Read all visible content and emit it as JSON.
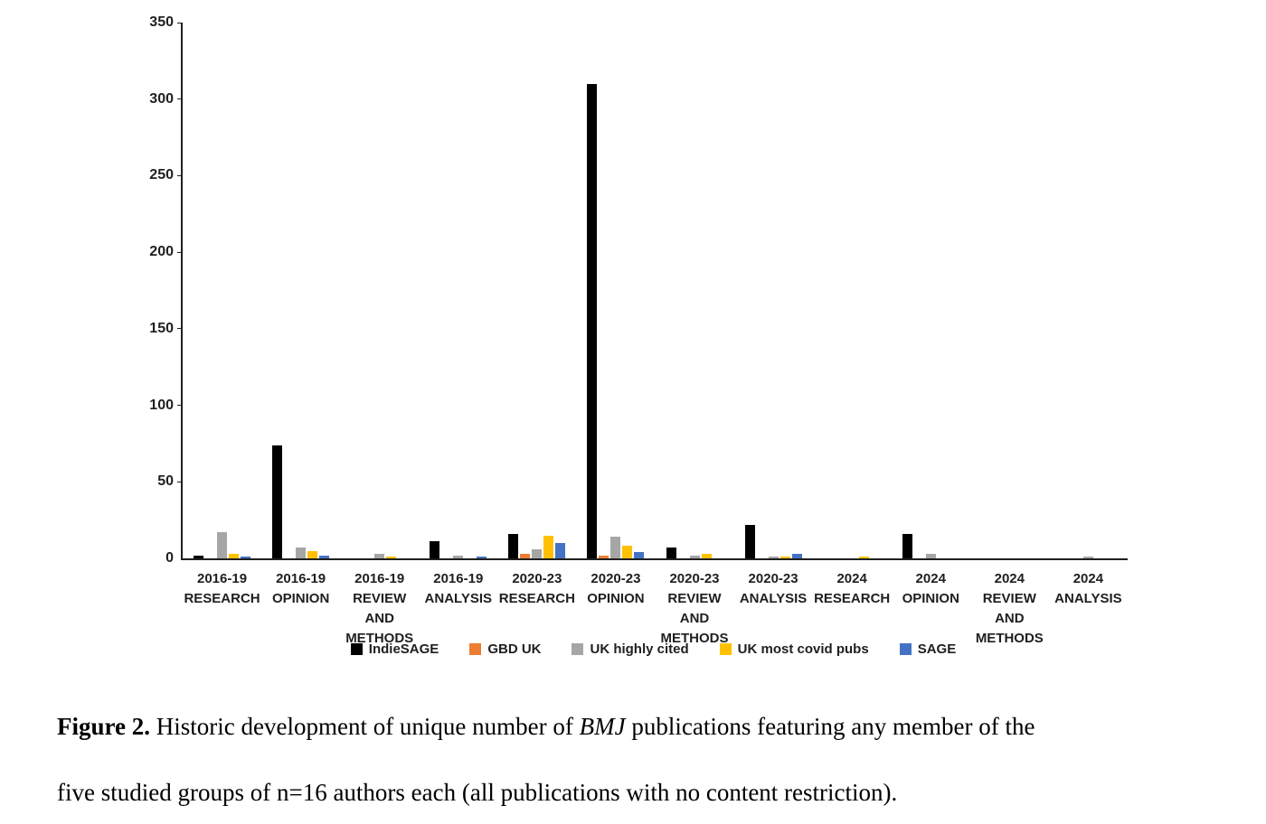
{
  "chart_data": {
    "type": "bar",
    "title": "",
    "xlabel": "",
    "ylabel": "",
    "ylim": [
      0,
      350
    ],
    "y_ticks": [
      0,
      50,
      100,
      150,
      200,
      250,
      300,
      350
    ],
    "grid": false,
    "legend_position": "bottom",
    "categories": [
      "2016-19 RESEARCH",
      "2016-19 OPINION",
      "2016-19 REVIEW AND METHODS",
      "2016-19 ANALYSIS",
      "2020-23 RESEARCH",
      "2020-23 OPINION",
      "2020-23 REVIEW AND METHODS",
      "2020-23 ANALYSIS",
      "2024 RESEARCH",
      "2024 OPINION",
      "2024 REVIEW AND METHODS",
      "2024 ANALYSIS"
    ],
    "series": [
      {
        "name": "IndieSAGE",
        "color": "#000000",
        "values": [
          2,
          74,
          0,
          11,
          16,
          310,
          7,
          22,
          0,
          16,
          0,
          0
        ]
      },
      {
        "name": "GBD UK",
        "color": "#ED7D31",
        "values": [
          0,
          0,
          0,
          0,
          3,
          2,
          0,
          0,
          0,
          0,
          0,
          0
        ]
      },
      {
        "name": "UK highly cited",
        "color": "#A6A6A6",
        "values": [
          17,
          7,
          3,
          2,
          6,
          14,
          2,
          1,
          0,
          3,
          0,
          1
        ]
      },
      {
        "name": "UK most covid pubs",
        "color": "#FFC000",
        "values": [
          3,
          5,
          1,
          0,
          15,
          8,
          3,
          1,
          1,
          0,
          0,
          0
        ]
      },
      {
        "name": "SAGE",
        "color": "#4472C4",
        "values": [
          1,
          2,
          0,
          1,
          10,
          4,
          0,
          3,
          0,
          0,
          0,
          0
        ]
      }
    ]
  },
  "caption": {
    "segments": [
      {
        "text": "Figure 2.",
        "bold": true
      },
      {
        "text": " Historic development of unique number of "
      },
      {
        "text": "BMJ",
        "italic": true
      },
      {
        "text": " publications featuring any member of the"
      },
      {
        "break": true
      },
      {
        "text": "five studied groups of n=16 authors each (all publications with no content restriction)."
      }
    ]
  }
}
